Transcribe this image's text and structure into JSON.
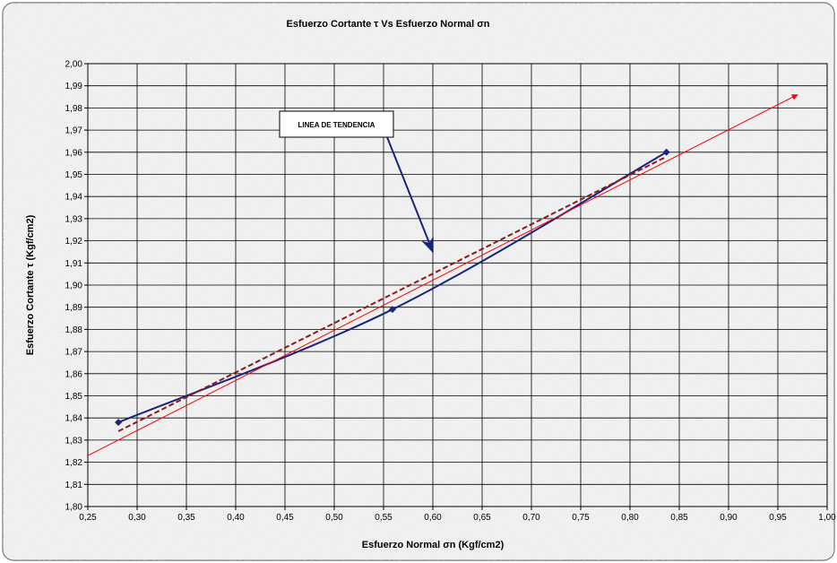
{
  "chart_data": {
    "type": "line",
    "title": "Esfuerzo Cortante τ Vs Esfuerzo Normal σn",
    "xlabel": "Esfuerzo Normal σn (Kgf/cm2)",
    "ylabel": "Esfuerzo Cortante τ (Kgf/cm2)",
    "xlim": [
      0.25,
      1.0
    ],
    "ylim": [
      1.8,
      2.0
    ],
    "x_ticks": [
      "0,25",
      "0,30",
      "0,35",
      "0,40",
      "0,45",
      "0,50",
      "0,55",
      "0,60",
      "0,65",
      "0,70",
      "0,75",
      "0,80",
      "0,85",
      "0,90",
      "0,95",
      "1,00"
    ],
    "y_ticks": [
      "1,80",
      "1,81",
      "1,82",
      "1,83",
      "1,84",
      "1,85",
      "1,86",
      "1,87",
      "1,88",
      "1,89",
      "1,90",
      "1,91",
      "1,92",
      "1,93",
      "1,94",
      "1,95",
      "1,96",
      "1,97",
      "1,98",
      "1,99",
      "2,00"
    ],
    "grid": true,
    "series": [
      {
        "kind": "data",
        "color": "#1a237e",
        "points": [
          [
            0.281,
            1.838
          ],
          [
            0.559,
            1.889
          ],
          [
            0.837,
            1.96
          ]
        ]
      },
      {
        "kind": "trendline",
        "color": "#8b1a1a",
        "dashed": true,
        "points": [
          [
            0.281,
            1.834
          ],
          [
            0.837,
            1.958
          ]
        ]
      },
      {
        "kind": "extended-line",
        "color": "#ff0000",
        "points": [
          [
            0.25,
            1.823
          ],
          [
            0.97,
            1.986
          ]
        ]
      }
    ],
    "annotation": {
      "text": "LINEA DE TENDENCIA",
      "arrow_to": [
        0.6,
        1.915
      ]
    }
  }
}
